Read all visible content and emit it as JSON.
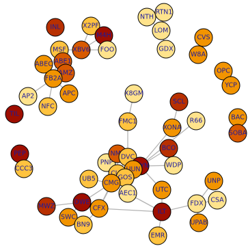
{
  "colors": {
    "c1": "#ffe38c",
    "c2": "#ffc33f",
    "c3": "#f29400",
    "c4": "#d85a00",
    "c5": "#b83000",
    "c6": "#9e0e00"
  },
  "nodes": [
    {
      "id": "INL",
      "label": "INL",
      "color": "c5"
    },
    {
      "id": "X2PF",
      "label": "X2PF",
      "color": "c2"
    },
    {
      "id": "M4H",
      "label": "M4H",
      "color": "c6"
    },
    {
      "id": "XBV6",
      "label": "XBV6",
      "color": "c4"
    },
    {
      "id": "FOO",
      "label": "FOO",
      "color": "c1"
    },
    {
      "id": "MSF",
      "label": "MSF",
      "color": "c2"
    },
    {
      "id": "ABEC",
      "label": "ABEC",
      "color": "c3"
    },
    {
      "id": "ABE1",
      "label": "ABE1",
      "color": "c4"
    },
    {
      "id": "AMZ",
      "label": "AMZ",
      "color": "c4"
    },
    {
      "id": "FB2A",
      "label": "FB2A",
      "color": "c3"
    },
    {
      "id": "APC",
      "label": "APC",
      "color": "c3"
    },
    {
      "id": "AP2",
      "label": "AP2",
      "color": "c1"
    },
    {
      "id": "NFC",
      "label": "NFC",
      "color": "c2"
    },
    {
      "id": "TIL",
      "label": "TIL",
      "color": "c6"
    },
    {
      "id": "NTH",
      "label": "NTH",
      "color": "c1"
    },
    {
      "id": "RTN1",
      "label": "RTN1",
      "color": "c1"
    },
    {
      "id": "LOM",
      "label": "LOM",
      "color": "c1"
    },
    {
      "id": "GDX",
      "label": "GDX",
      "color": "c1"
    },
    {
      "id": "CVS",
      "label": "CVS",
      "color": "c3"
    },
    {
      "id": "W8A",
      "label": "W8A",
      "color": "c3"
    },
    {
      "id": "OPC",
      "label": "OPC",
      "color": "c3"
    },
    {
      "id": "YCP",
      "label": "YCP",
      "color": "c3"
    },
    {
      "id": "BAC",
      "label": "BAC",
      "color": "c3"
    },
    {
      "id": "SOBA",
      "label": "SOBA",
      "color": "c4"
    },
    {
      "id": "X8GM",
      "label": "X8GM",
      "color": "c1"
    },
    {
      "id": "SCL",
      "label": "SCL",
      "color": "c5"
    },
    {
      "id": "FMC1",
      "label": "FMC1",
      "color": "c2"
    },
    {
      "id": "XONA",
      "label": "XONA",
      "color": "c3"
    },
    {
      "id": "R66",
      "label": "R66",
      "color": "c1"
    },
    {
      "id": "BCO",
      "label": "BCO",
      "color": "c5"
    },
    {
      "id": "WDP",
      "label": "WDP",
      "color": "c1"
    },
    {
      "id": "UTC",
      "label": "UTC",
      "color": "c3"
    },
    {
      "id": "PEP",
      "label": "PEP",
      "color": "c6"
    },
    {
      "id": "CCC3",
      "label": "CCC3",
      "color": "c2"
    },
    {
      "id": "PNP",
      "label": "PNP",
      "color": "c1"
    },
    {
      "id": "NMP",
      "label": "NMP",
      "color": "c4"
    },
    {
      "id": "DVC",
      "label": "DVC",
      "color": "c2"
    },
    {
      "id": "HBYN",
      "label": "HBYN",
      "color": "c6"
    },
    {
      "id": "UUN",
      "label": "UUN",
      "color": "c3"
    },
    {
      "id": "CUK",
      "label": "CUK",
      "color": "c2"
    },
    {
      "id": "GOS",
      "label": "GOS",
      "color": "c2"
    },
    {
      "id": "UB5",
      "label": "UB5",
      "color": "c2"
    },
    {
      "id": "CMG",
      "label": "CMG",
      "color": "c3"
    },
    {
      "id": "AEC1",
      "label": "AEC1",
      "color": "c1"
    },
    {
      "id": "DWE",
      "label": "DWE",
      "color": "c6"
    },
    {
      "id": "CFX",
      "label": "CFX",
      "color": "c3"
    },
    {
      "id": "MWZ",
      "label": "MWZ",
      "color": "c5"
    },
    {
      "id": "SWC",
      "label": "SWC",
      "color": "c3"
    },
    {
      "id": "BN9",
      "label": "BN9",
      "color": "c2"
    },
    {
      "id": "ILT",
      "label": "ILT",
      "color": "c6"
    },
    {
      "id": "EMR",
      "label": "EMR",
      "color": "c2"
    },
    {
      "id": "UNP",
      "label": "UNP",
      "color": "c3"
    },
    {
      "id": "FDX",
      "label": "FDX",
      "color": "c1"
    },
    {
      "id": "CSA",
      "label": "CSA",
      "color": "c1"
    },
    {
      "id": "UPAB",
      "label": "UPAB",
      "color": "c3"
    }
  ],
  "edges": [
    [
      "X2PF",
      "XBV6"
    ],
    [
      "M4H",
      "XBV6"
    ],
    [
      "XBV6",
      "FOO"
    ],
    [
      "XBV6",
      "MSF"
    ],
    [
      "MSF",
      "FB2A"
    ],
    [
      "ABEC",
      "FB2A"
    ],
    [
      "ABE1",
      "FB2A"
    ],
    [
      "AMZ",
      "FB2A"
    ],
    [
      "FB2A",
      "AP2"
    ],
    [
      "FB2A",
      "NFC"
    ],
    [
      "FB2A",
      "APC"
    ],
    [
      "MSF",
      "AMZ"
    ],
    [
      "ABE1",
      "AMZ"
    ],
    [
      "NTH",
      "LOM"
    ],
    [
      "RTN1",
      "LOM"
    ],
    [
      "LOM",
      "GDX"
    ],
    [
      "CVS",
      "W8A"
    ],
    [
      "OPC",
      "YCP"
    ],
    [
      "BAC",
      "SOBA"
    ],
    [
      "PEP",
      "CCC3"
    ],
    [
      "X8GM",
      "FMC1"
    ],
    [
      "FMC1",
      "DVC"
    ],
    [
      "SCL",
      "XONA"
    ],
    [
      "XONA",
      "HBYN"
    ],
    [
      "BCO",
      "HBYN"
    ],
    [
      "R66",
      "HBYN"
    ],
    [
      "WDP",
      "HBYN"
    ],
    [
      "HBYN",
      "UTC"
    ],
    [
      "UTC",
      "ILT"
    ],
    [
      "HBYN",
      "CUK"
    ],
    [
      "DVC",
      "CUK"
    ],
    [
      "NMP",
      "CUK"
    ],
    [
      "PNP",
      "CUK"
    ],
    [
      "UUN",
      "CUK"
    ],
    [
      "GOS",
      "CUK"
    ],
    [
      "UB5",
      "CMG"
    ],
    [
      "CMG",
      "CUK"
    ],
    [
      "CMG",
      "GOS"
    ],
    [
      "CMG",
      "DWE"
    ],
    [
      "CMG",
      "CFX"
    ],
    [
      "DWE",
      "CFX"
    ],
    [
      "DWE",
      "MWZ"
    ],
    [
      "DWE",
      "SWC"
    ],
    [
      "SWC",
      "BN9"
    ],
    [
      "CFX",
      "BN9"
    ],
    [
      "CFX",
      "CUK"
    ],
    [
      "AEC1",
      "CUK"
    ],
    [
      "AEC1",
      "ILT"
    ],
    [
      "HBYN",
      "AEC1"
    ],
    [
      "HBYN",
      "GOS"
    ],
    [
      "ILT",
      "EMR"
    ],
    [
      "ILT",
      "FDX"
    ],
    [
      "FDX",
      "UNP"
    ],
    [
      "FDX",
      "CSA"
    ],
    [
      "FDX",
      "UPAB"
    ],
    [
      "ILT",
      "CFX"
    ]
  ]
}
